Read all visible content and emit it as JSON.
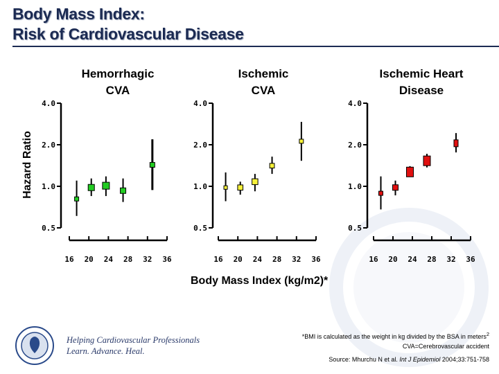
{
  "title_line1": "Body Mass Index:",
  "title_line2": "Risk of Cardiovascular Disease",
  "chart_data": {
    "type": "scatter",
    "subtype": "forest plot with error bars, log-scale y axis",
    "ylabel": "Hazard Ratio",
    "xlabel": "Body Mass Index (kg/m2)*",
    "y_scale": "log",
    "ylim": [
      0.5,
      4.0
    ],
    "yticks": [
      "0.5",
      "1.0",
      "2.0",
      "4.0"
    ],
    "xlim": [
      16,
      36
    ],
    "xticks": [
      "16",
      "20",
      "24",
      "28",
      "32",
      "36"
    ],
    "grid": false,
    "panels": [
      {
        "title_line1": "Hemorrhagic",
        "title_line2": "CVA",
        "color": "#22cc22",
        "points": [
          {
            "x": 17.5,
            "y": 0.81,
            "lo": 0.61,
            "hi": 1.1
          },
          {
            "x": 20.5,
            "y": 0.98,
            "lo": 0.85,
            "hi": 1.14
          },
          {
            "x": 23.5,
            "y": 1.01,
            "lo": 0.85,
            "hi": 1.18
          },
          {
            "x": 27.0,
            "y": 0.93,
            "lo": 0.77,
            "hi": 1.14
          },
          {
            "x": 33.0,
            "y": 1.43,
            "lo": 0.94,
            "hi": 2.19
          }
        ]
      },
      {
        "title_line1": "Ischemic",
        "title_line2": "CVA",
        "color": "#f5f03a",
        "points": [
          {
            "x": 17.5,
            "y": 0.98,
            "lo": 0.78,
            "hi": 1.26
          },
          {
            "x": 20.5,
            "y": 0.98,
            "lo": 0.87,
            "hi": 1.08
          },
          {
            "x": 23.5,
            "y": 1.08,
            "lo": 0.92,
            "hi": 1.23
          },
          {
            "x": 27.0,
            "y": 1.41,
            "lo": 1.23,
            "hi": 1.64
          },
          {
            "x": 33.0,
            "y": 2.12,
            "lo": 1.53,
            "hi": 2.93
          }
        ]
      },
      {
        "title_line1": "Ischemic Heart",
        "title_line2": "Disease",
        "color": "#e01010",
        "points": [
          {
            "x": 17.5,
            "y": 0.89,
            "lo": 0.68,
            "hi": 1.18
          },
          {
            "x": 20.5,
            "y": 0.98,
            "lo": 0.86,
            "hi": 1.1
          },
          {
            "x": 23.5,
            "y": 1.27,
            "lo": 1.18,
            "hi": 1.4
          },
          {
            "x": 27.0,
            "y": 1.53,
            "lo": 1.37,
            "hi": 1.72
          },
          {
            "x": 33.0,
            "y": 2.05,
            "lo": 1.76,
            "hi": 2.43
          }
        ]
      }
    ]
  },
  "footnotes": {
    "bmi_note": "*BMI is calculated as the weight in kg divided by the BSA in meters",
    "bmi_note_sup": "2",
    "cva_note": "CVA=Cerebrovascular accident",
    "source_prefix": "Source: Mhurchu N et al. ",
    "source_journal": "Int J Epidemiol",
    "source_suffix": " 2004;33:751-758"
  },
  "logo": {
    "seal_text": "AMERICAN COLLEGE OF CARDIOLOGY",
    "tagline1": "Helping Cardiovascular Professionals",
    "tagline2": "Learn. Advance. Heal."
  }
}
